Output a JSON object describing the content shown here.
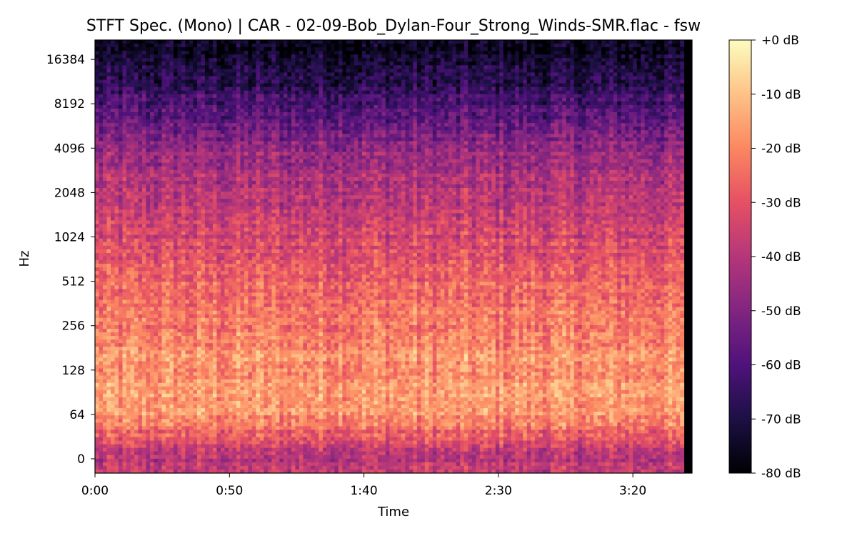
{
  "chart_data": {
    "type": "heatmap",
    "title": "STFT Spec. (Mono) | CAR - 02-09-Bob_Dylan-Four_Strong_Winds-SMR.flac - fsw",
    "xlabel": "Time",
    "ylabel": "Hz",
    "x_tick_labels": [
      "0:00",
      "0:50",
      "1:40",
      "2:30",
      "3:20"
    ],
    "x_tick_seconds": [
      0,
      50,
      100,
      150,
      200
    ],
    "x_range_seconds": [
      0,
      222
    ],
    "audio_end_seconds": 219,
    "y_scale": "log2",
    "y_tick_labels": [
      "0",
      "64",
      "128",
      "256",
      "512",
      "1024",
      "2048",
      "4096",
      "8192",
      "16384"
    ],
    "y_range_hz": [
      0,
      22050
    ],
    "colorbar": {
      "colormap": "magma",
      "tick_labels": [
        "+0 dB",
        "-10 dB",
        "-20 dB",
        "-30 dB",
        "-40 dB",
        "-50 dB",
        "-60 dB",
        "-70 dB",
        "-80 dB"
      ],
      "tick_values": [
        0,
        -10,
        -20,
        -30,
        -40,
        -50,
        -60,
        -70,
        -80
      ],
      "range_db": [
        -80,
        0
      ]
    },
    "magnitude_profile_db": [
      {
        "hz": 0,
        "db": -40
      },
      {
        "hz": 64,
        "db": -18
      },
      {
        "hz": 128,
        "db": -17
      },
      {
        "hz": 256,
        "db": -22
      },
      {
        "hz": 512,
        "db": -27
      },
      {
        "hz": 1024,
        "db": -34
      },
      {
        "hz": 2048,
        "db": -40
      },
      {
        "hz": 4096,
        "db": -47
      },
      {
        "hz": 8192,
        "db": -62
      },
      {
        "hz": 16384,
        "db": -74
      }
    ],
    "grid": false,
    "legend": "colorbar-right"
  },
  "colors": {
    "magma": [
      "#000004",
      "#1c1044",
      "#4f127b",
      "#812581",
      "#b5367a",
      "#e55064",
      "#fb8761",
      "#fec287",
      "#fcfdbf"
    ]
  }
}
